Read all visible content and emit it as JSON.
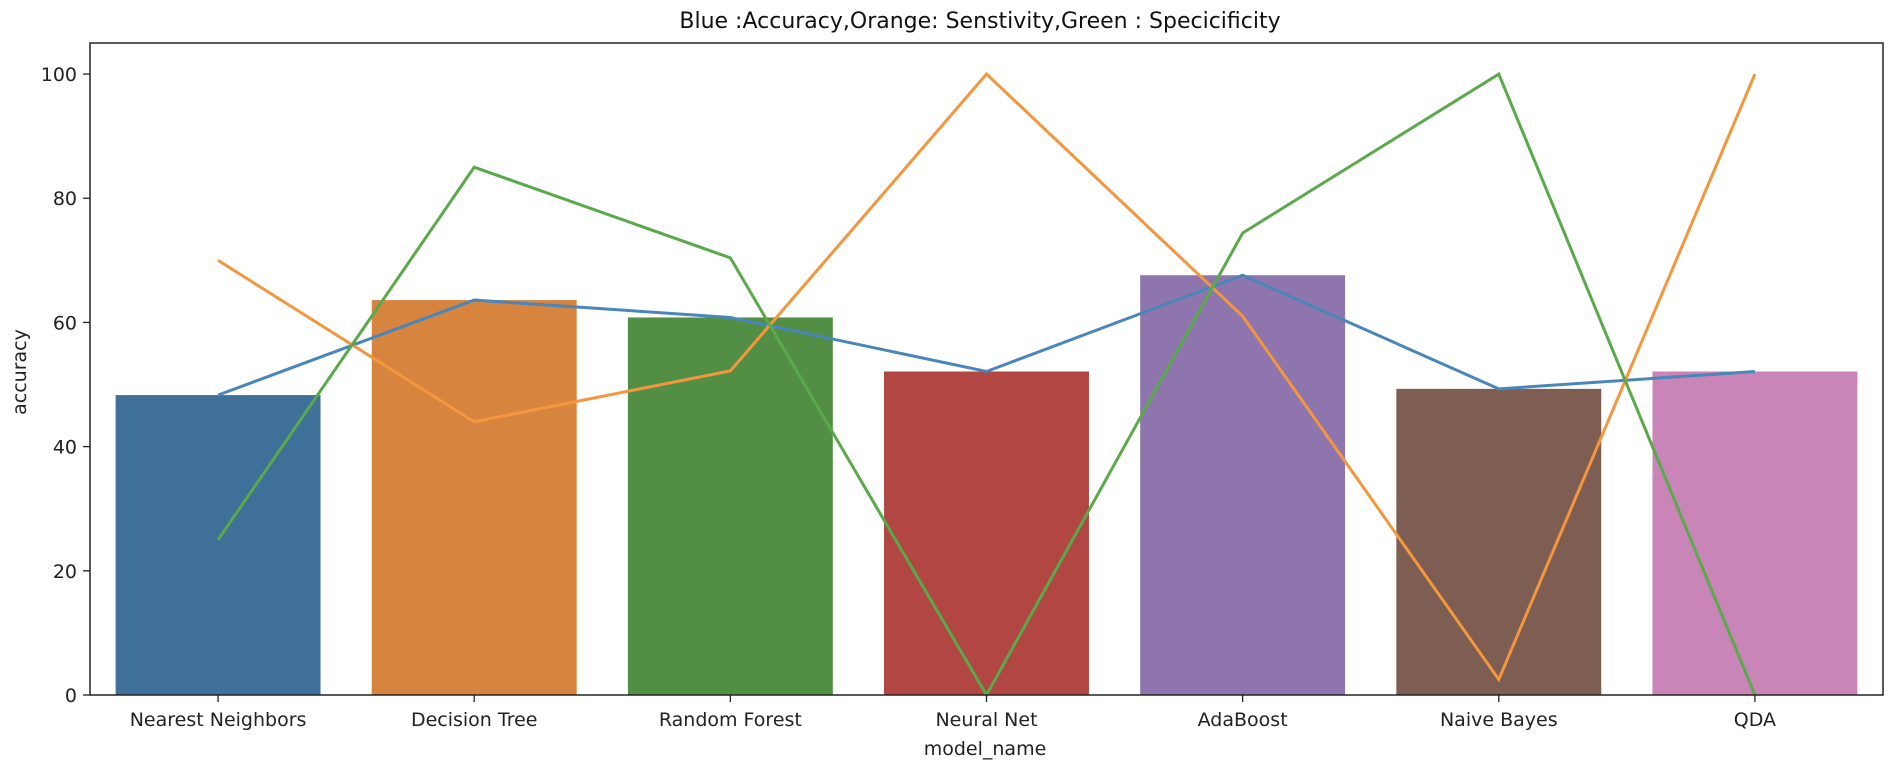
{
  "chart_data": {
    "type": "bar",
    "title": "Blue :Accuracy,Orange: Senstivity,Green : Specicificity",
    "xlabel": "model_name",
    "ylabel": "accuracy",
    "ylim": [
      0,
      105
    ],
    "yticks": [
      0,
      20,
      40,
      60,
      80,
      100
    ],
    "grid": false,
    "categories": [
      "Nearest Neighbors",
      "Decision Tree",
      "Random Forest",
      "Neural Net",
      "AdaBoost",
      "Naive Bayes",
      "QDA"
    ],
    "bars": {
      "values": [
        48.3,
        63.6,
        60.8,
        52.1,
        67.6,
        49.3,
        52.1
      ],
      "colors": [
        "#3e7099",
        "#d6843e",
        "#528f45",
        "#b14643",
        "#8e75ad",
        "#7e5e52",
        "#c984b8"
      ]
    },
    "series": [
      {
        "values": [
          48.3,
          63.6,
          60.8,
          52.1,
          67.6,
          49.3,
          52.1
        ],
        "color": "#4a86b9"
      },
      {
        "values": [
          70.0,
          44.0,
          52.2,
          100.0,
          61.0,
          2.5,
          100.0
        ],
        "color": "#f3963e"
      },
      {
        "values": [
          25.0,
          85.0,
          70.4,
          0.0,
          74.4,
          100.0,
          0.0
        ],
        "color": "#5aa94a"
      }
    ]
  }
}
